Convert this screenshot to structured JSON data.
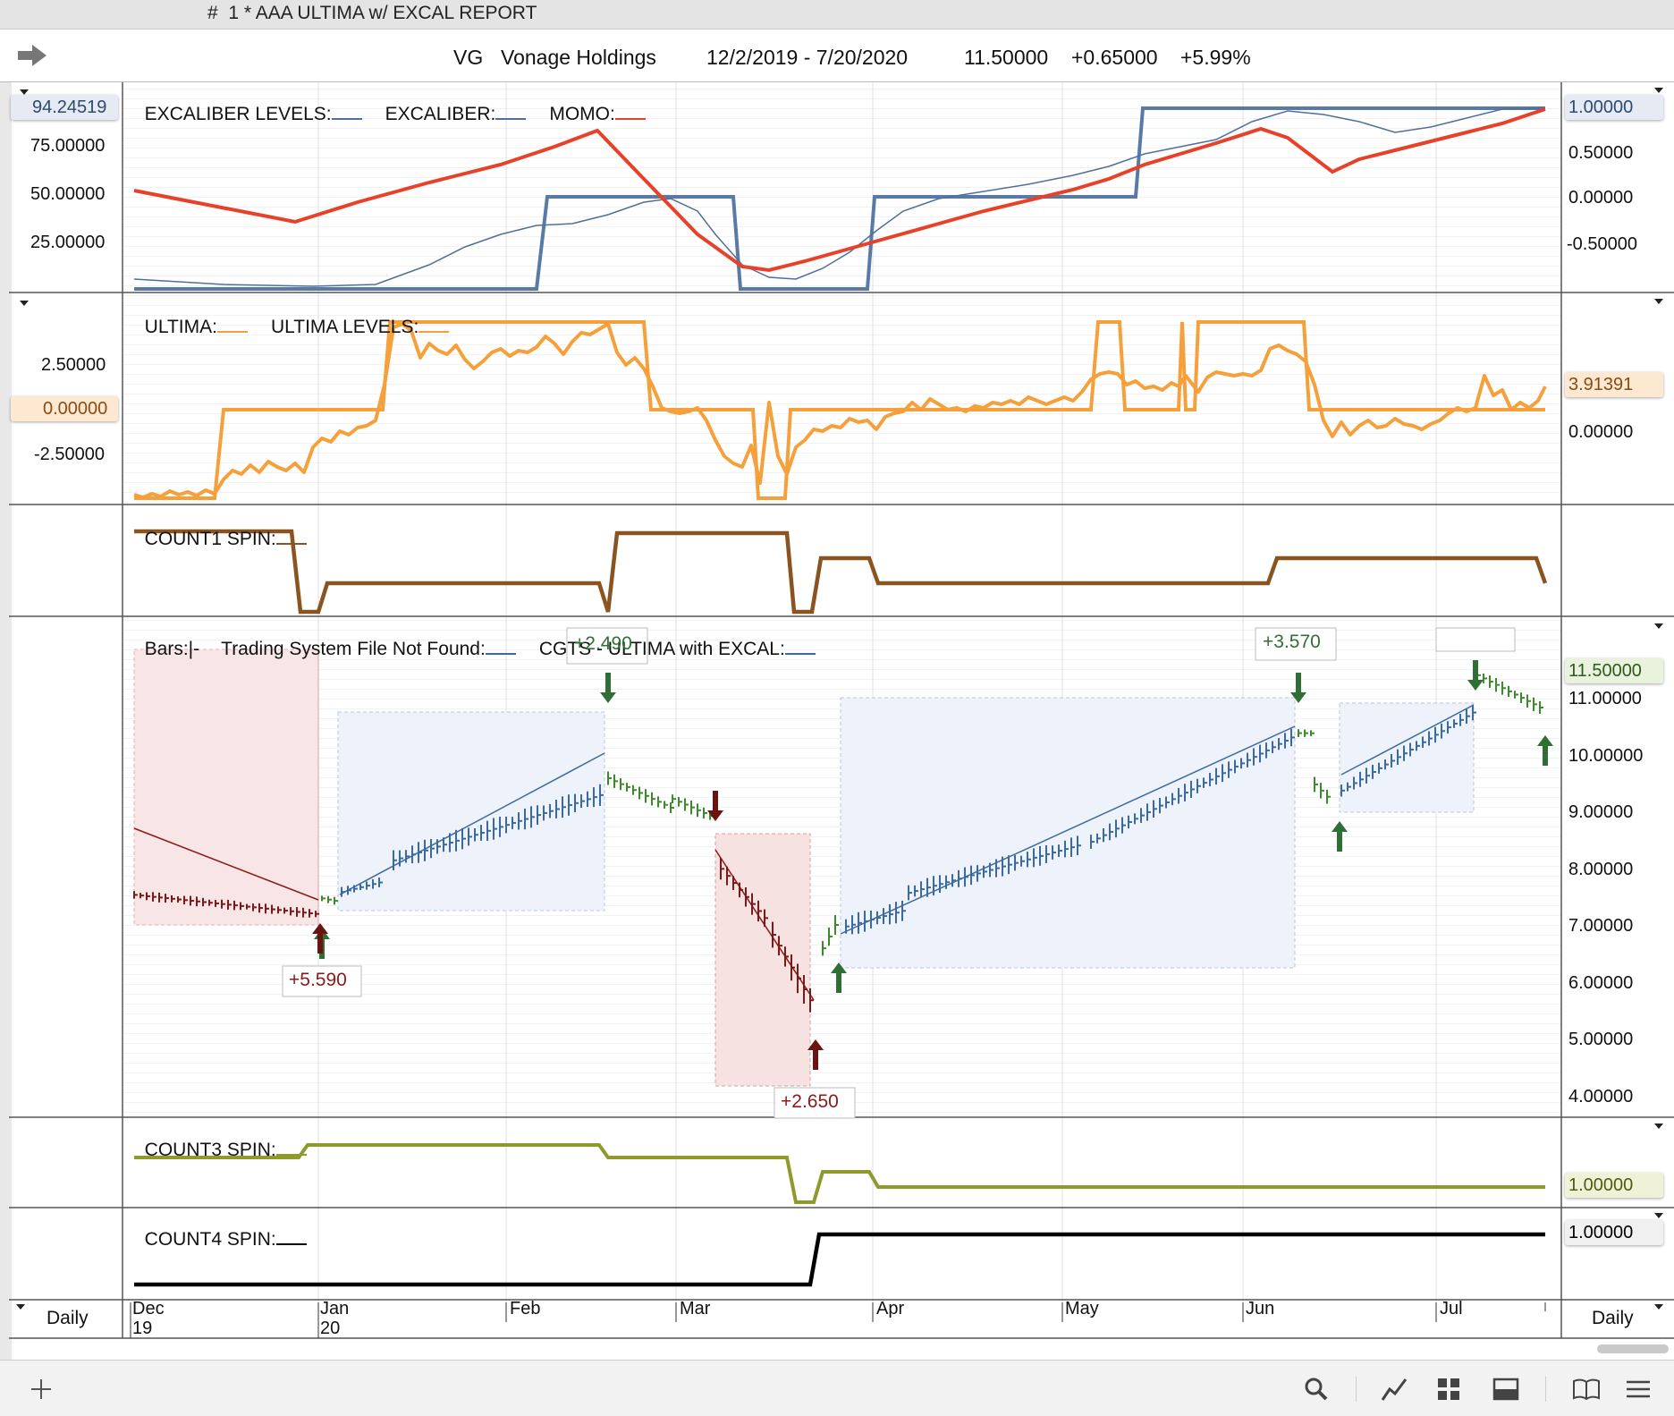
{
  "window": {
    "title": "#  1 * AAA ULTIMA w/ EXCAL REPORT"
  },
  "header": {
    "symbol": "VG",
    "name": "Vonage Holdings",
    "date_range": "12/2/2019 - 7/20/2020",
    "last": "11.50000",
    "change": "+0.65000",
    "change_pct": "+5.99%"
  },
  "panels": {
    "excaliber": {
      "legend": [
        "EXCALIBER LEVELS:",
        "EXCALIBER:",
        "MOMO:"
      ],
      "left_axis": [
        "75.00000",
        "50.00000",
        "25.00000"
      ],
      "left_highlight": "94.24519",
      "right_axis": [
        "0.50000",
        "0.00000",
        "-0.50000"
      ],
      "right_highlight": "1.00000"
    },
    "ultima": {
      "legend": [
        "ULTIMA:",
        "ULTIMA LEVELS:"
      ],
      "left_axis": [
        "2.50000",
        "-2.50000"
      ],
      "left_highlight": "0.00000",
      "right_axis": [
        "0.00000"
      ],
      "right_highlight": "3.91391"
    },
    "count1": {
      "legend": "COUNT1 SPIN:"
    },
    "price": {
      "legend": [
        "Bars:|-",
        "Trading System File Not Found:",
        "CGTS - ULTIMA with EXCAL:"
      ],
      "right_axis": [
        "11.00000",
        "10.00000",
        "9.00000",
        "8.00000",
        "7.00000",
        "6.00000",
        "5.00000",
        "4.00000"
      ],
      "right_highlight": "11.50000",
      "trade_labels": [
        "+5.590",
        "+2.490",
        "+2.650",
        "+3.570"
      ]
    },
    "count3": {
      "legend": "COUNT3 SPIN:",
      "right_highlight": "1.00000"
    },
    "count4": {
      "legend": "COUNT4 SPIN:",
      "right_highlight": "1.00000"
    }
  },
  "xaxis": {
    "months": [
      "Dec",
      "Jan",
      "Feb",
      "Mar",
      "Apr",
      "May",
      "Jun",
      "Jul"
    ],
    "years": [
      "19",
      "20"
    ],
    "period_left": "Daily",
    "period_right": "Daily"
  },
  "colors": {
    "momo": "#e8412a",
    "excaliber": "#4f6f9a",
    "ultima": "#f5a03a",
    "count1": "#8a5420",
    "count3": "#8f9a2c",
    "count4": "#000000",
    "bars_up": "#3d8a2a",
    "bars_down": "#7a1a1a",
    "bars_blue": "#3a6aa0"
  },
  "toolbar": {
    "icons": [
      "add-icon",
      "search-icon",
      "chart-line-icon",
      "grid-icon",
      "layout-icon",
      "book-icon",
      "menu-icon"
    ]
  }
}
